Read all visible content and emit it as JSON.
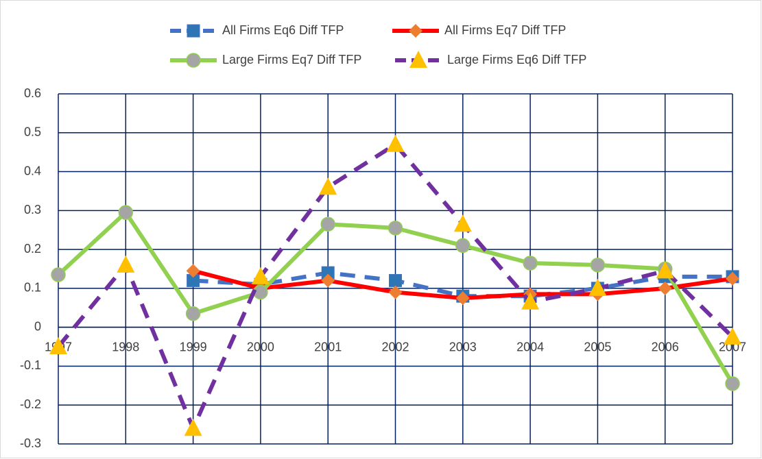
{
  "chart_data": {
    "type": "line",
    "categories": [
      "1997",
      "1998",
      "1999",
      "2000",
      "2001",
      "2002",
      "2003",
      "2004",
      "2005",
      "2006",
      "2007"
    ],
    "series": [
      {
        "name": "All Firms Eq6  Diff TFP",
        "color": "#4472c4",
        "marker_color": "#2e75b6",
        "marker": "square",
        "dash": true,
        "values": [
          null,
          null,
          0.12,
          0.11,
          0.14,
          0.12,
          0.08,
          0.08,
          0.1,
          0.13,
          0.13
        ]
      },
      {
        "name": "All Firms Eq7  Diff TFP",
        "color": "#ff0000",
        "marker_color": "#ed7d31",
        "marker": "diamond",
        "dash": false,
        "values": [
          null,
          null,
          0.145,
          0.1,
          0.12,
          0.09,
          0.075,
          0.085,
          0.085,
          0.1,
          0.125
        ]
      },
      {
        "name": "Large Firms Eq7  Diff TFP",
        "color": "#92d050",
        "marker_color": "#a5a5a5",
        "marker": "circle",
        "dash": false,
        "values": [
          0.135,
          0.295,
          0.035,
          0.09,
          0.265,
          0.255,
          0.21,
          0.165,
          0.16,
          0.15,
          -0.145
        ]
      },
      {
        "name": "Large Firms Eq6 Diff TFP",
        "color": "#7030a0",
        "marker_color": "#ffc000",
        "marker": "triangle",
        "dash": true,
        "values": [
          -0.05,
          0.16,
          -0.26,
          0.13,
          0.36,
          0.47,
          0.265,
          0.065,
          0.1,
          0.145,
          -0.025
        ]
      }
    ],
    "ylim": [
      -0.3,
      0.6
    ],
    "yticks": [
      0.6,
      0.5,
      0.4,
      0.3,
      0.2,
      0.1,
      0,
      -0.1,
      -0.2,
      -0.3
    ],
    "grid": true
  }
}
